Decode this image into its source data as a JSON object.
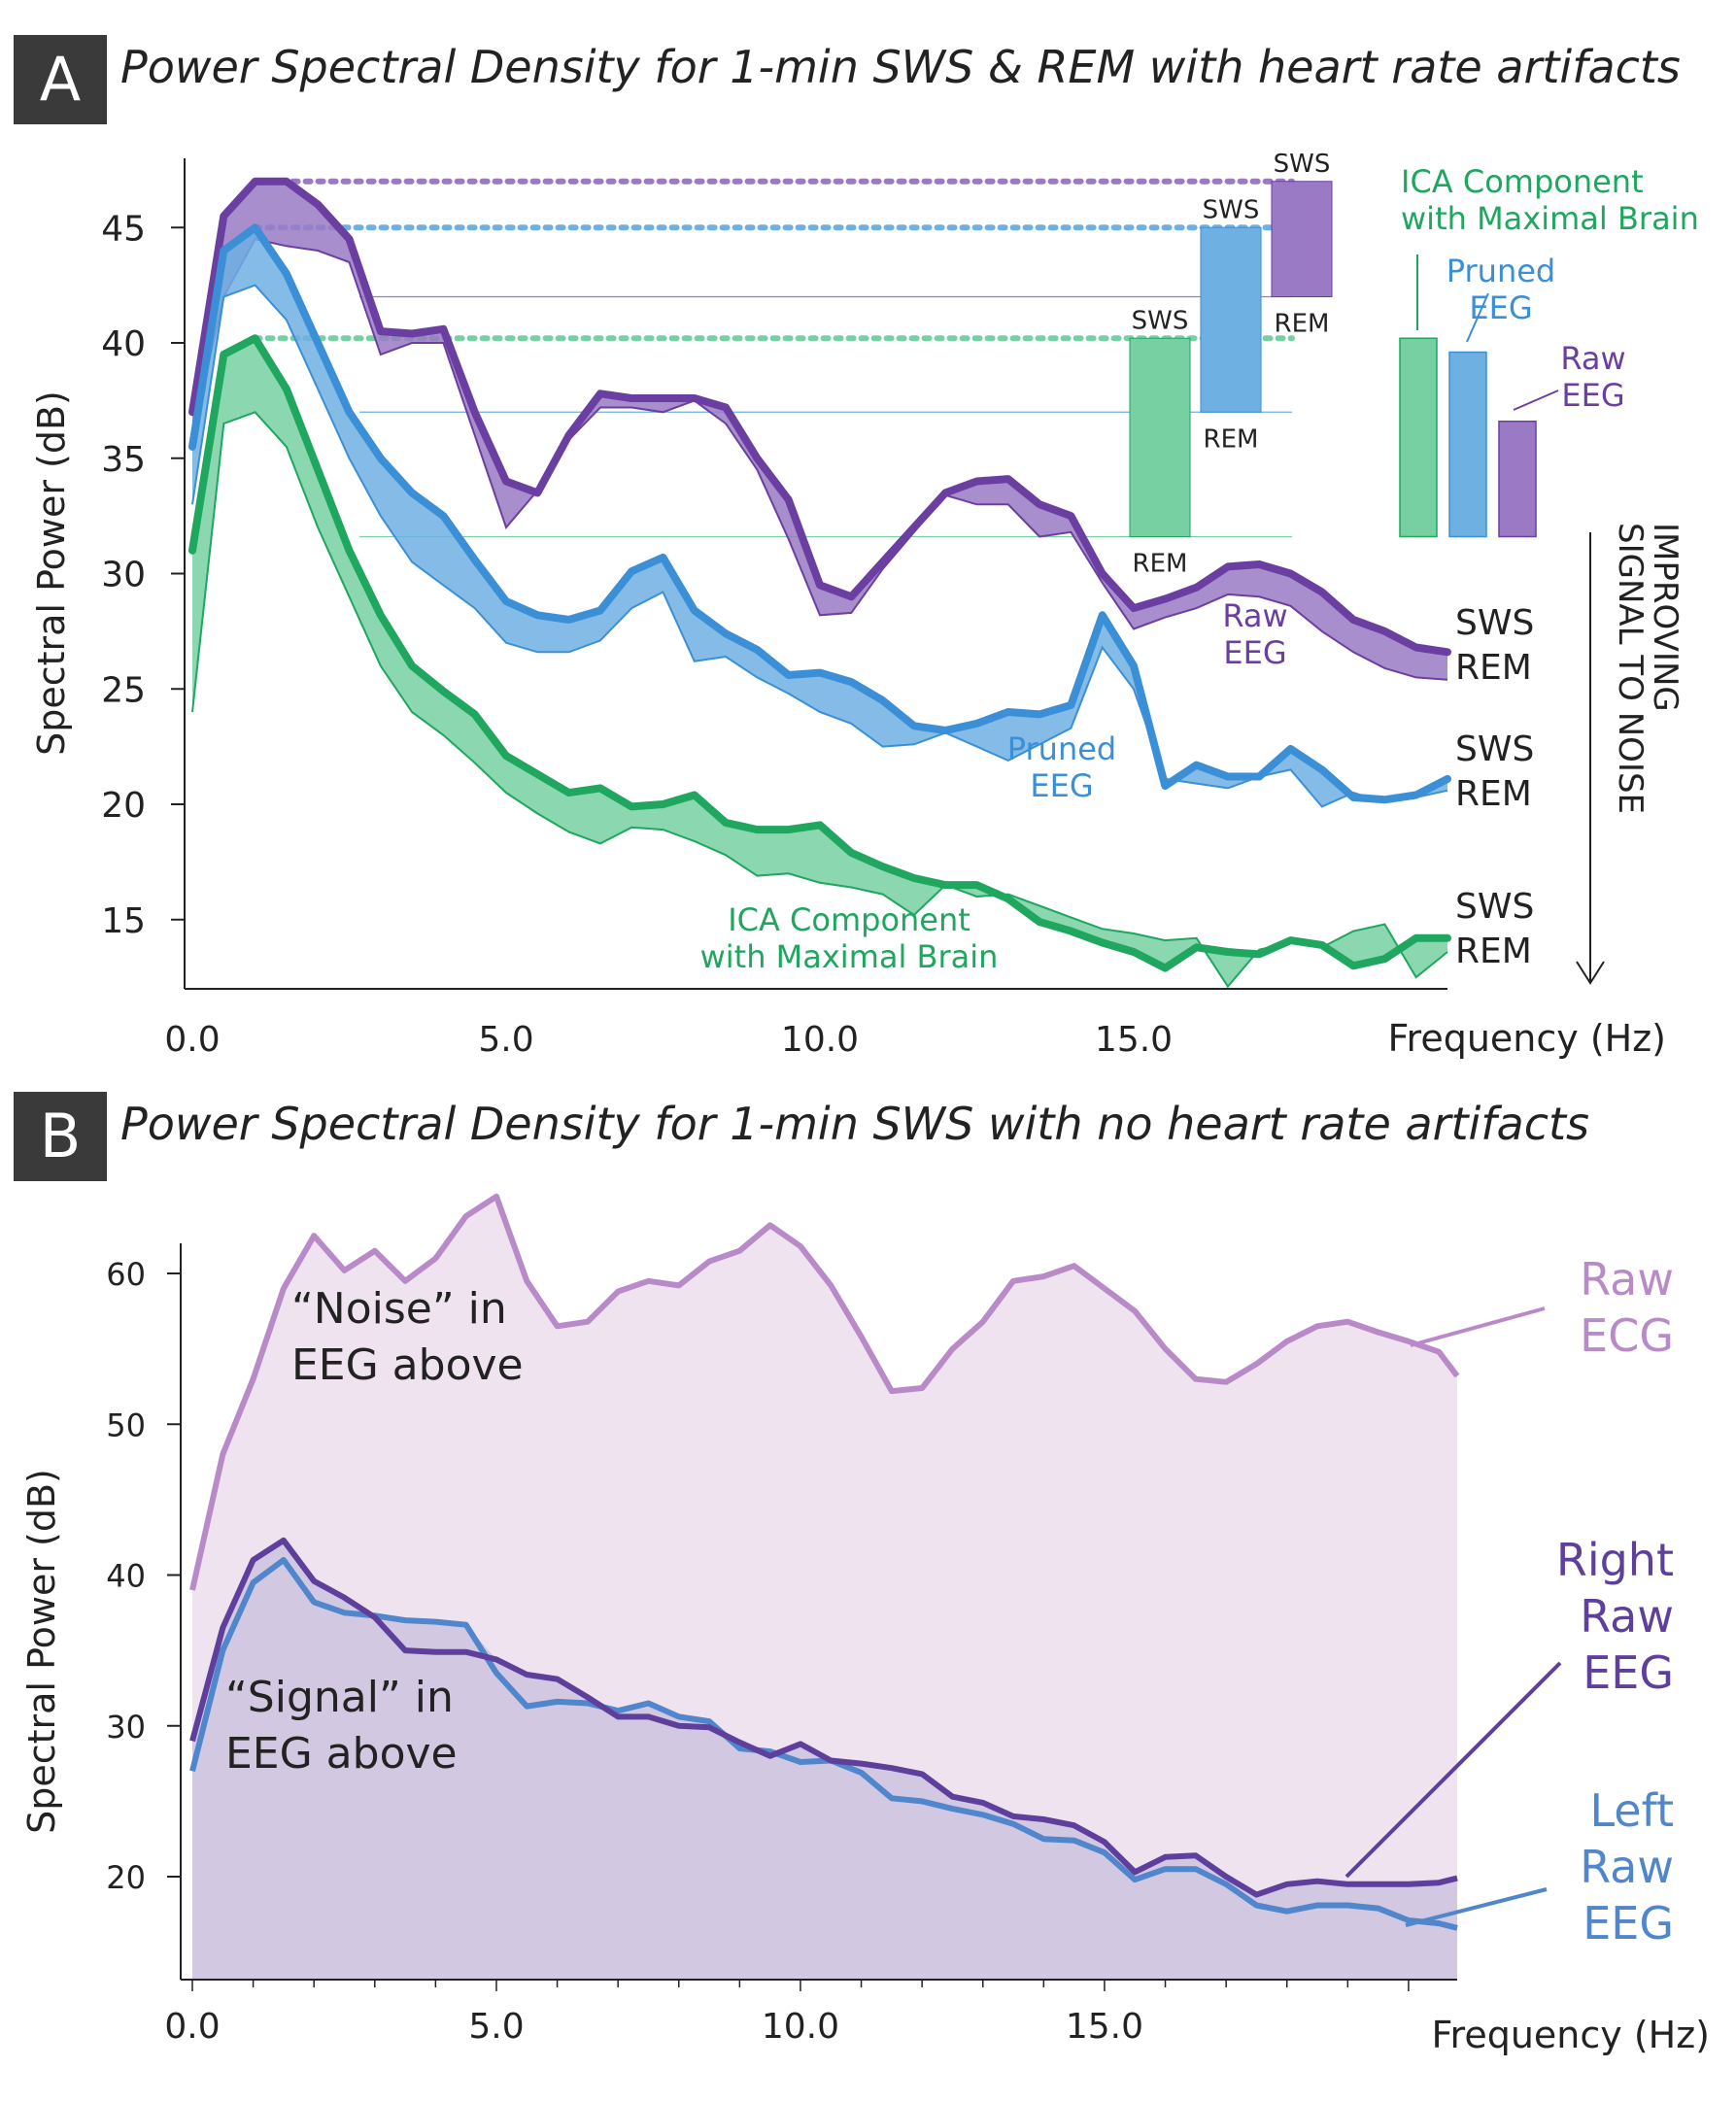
{
  "colors": {
    "purple": "#6a3fa1",
    "purple_fill": "#9a7ac4",
    "blue": "#3b8fd6",
    "blue_fill": "#6fb0e3",
    "green": "#1fa65f",
    "green_fill": "#76d0a2",
    "ecg": "#b98ac8",
    "ecg_fill": "#efe3f0",
    "right": "#5e3f9c",
    "left": "#4f86cc",
    "signal_fill": "#d3c8e2"
  },
  "panel_a": {
    "badge": "A",
    "title": "Power Spectral Density for 1-min SWS & REM with heart rate artifacts"
  },
  "panel_b": {
    "badge": "B",
    "title": "Power Spectral Density for 1-min SWS with no heart rate artifacts"
  },
  "chart_data": [
    {
      "type": "area",
      "title": "Power Spectral Density for 1-min SWS & REM with heart rate artifacts",
      "xlabel": "Frequency (Hz)",
      "ylabel": "Spectral Power (dB)",
      "xlim": [
        0,
        20
      ],
      "ylim": [
        12,
        48
      ],
      "xticks": [
        "0.0",
        "5.0",
        "10.0",
        "15.0"
      ],
      "yticks": [
        "15",
        "20",
        "25",
        "30",
        "35",
        "40",
        "45"
      ],
      "grid": false,
      "x": [
        0,
        0.5,
        1,
        1.5,
        2,
        2.5,
        3,
        3.5,
        4,
        4.5,
        5,
        5.5,
        6,
        6.5,
        7,
        7.5,
        8,
        8.5,
        9,
        9.5,
        10,
        10.5,
        11,
        11.5,
        12,
        12.5,
        13,
        13.5,
        14,
        14.5,
        15,
        15.5,
        16,
        16.5,
        17,
        17.5,
        18,
        18.5,
        19,
        19.5,
        20
      ],
      "series": [
        {
          "name": "Raw EEG",
          "state": "SWS",
          "color": "purple",
          "values": [
            37,
            45.5,
            47,
            47,
            46,
            44.5,
            40.5,
            40.4,
            40.6,
            37,
            34,
            33.5,
            36,
            37.8,
            37.6,
            37.6,
            37.6,
            37.2,
            35,
            33.2,
            29.5,
            29,
            30.5,
            32,
            33.5,
            34,
            34.1,
            33,
            32.5,
            30,
            28.5,
            28.9,
            29.4,
            30.3,
            30.4,
            30,
            29.2,
            28,
            27.5,
            26.8,
            26.6
          ]
        },
        {
          "name": "Raw EEG",
          "state": "REM",
          "color": "purple",
          "values": [
            36,
            42,
            44.5,
            44.2,
            44,
            43.5,
            39.5,
            40,
            40,
            36,
            32,
            33.6,
            35.8,
            37.2,
            37.2,
            37,
            37.5,
            36.5,
            34.5,
            31.5,
            28.2,
            28.3,
            30.2,
            31.8,
            33.4,
            33,
            33,
            31.6,
            31.8,
            29.6,
            27.6,
            28.1,
            28.5,
            29.1,
            29,
            28.6,
            27.5,
            26.6,
            25.9,
            25.5,
            25.4
          ]
        },
        {
          "name": "Pruned EEG",
          "state": "SWS",
          "color": "blue",
          "values": [
            35.5,
            44,
            45,
            43,
            40,
            37,
            35,
            33.5,
            32.5,
            30.6,
            28.8,
            28.2,
            28,
            28.4,
            30.1,
            30.7,
            28.4,
            27.4,
            26.7,
            25.6,
            25.7,
            25.3,
            24.5,
            23.4,
            23.2,
            23.5,
            24,
            23.9,
            24.3,
            28.2,
            26,
            20.8,
            21.7,
            21.2,
            21.2,
            22.4,
            21.5,
            20.3,
            20.2,
            20.4,
            21.1
          ]
        },
        {
          "name": "Pruned EEG",
          "state": "REM",
          "color": "blue",
          "values": [
            33,
            42,
            42.5,
            41,
            38,
            35,
            32.5,
            30.5,
            29.5,
            28.5,
            27,
            26.6,
            26.6,
            27.1,
            28.5,
            29.2,
            26.2,
            26.4,
            25.5,
            24.8,
            24,
            23.5,
            22.5,
            22.6,
            23.1,
            22.5,
            21.9,
            22.6,
            23.3,
            26.8,
            25,
            21.1,
            20.9,
            20.7,
            21.2,
            21.5,
            19.9,
            20.5,
            20.1,
            20.3,
            20.6
          ]
        },
        {
          "name": "ICA Component with Maximal Brain",
          "state": "SWS",
          "color": "green",
          "values": [
            31,
            39.5,
            40.2,
            38,
            34.5,
            31,
            28.2,
            26,
            24.9,
            23.9,
            22.1,
            21.3,
            20.5,
            20.7,
            19.9,
            20,
            20.4,
            19.2,
            18.9,
            18.9,
            19.1,
            17.9,
            17.3,
            16.8,
            16.5,
            16.5,
            15.9,
            14.9,
            14.5,
            14,
            13.6,
            12.9,
            13.8,
            13.6,
            13.5,
            14.1,
            13.9,
            13,
            13.3,
            14.2,
            14.2
          ]
        },
        {
          "name": "ICA Component with Maximal Brain",
          "state": "REM",
          "color": "green",
          "values": [
            24,
            36.5,
            37,
            35.5,
            32,
            29,
            26,
            24,
            23,
            21.8,
            20.5,
            19.6,
            18.8,
            18.3,
            19,
            18.9,
            18.4,
            17.8,
            16.9,
            17,
            16.6,
            16.4,
            16.1,
            15.2,
            16.5,
            16,
            16.1,
            15.6,
            15.1,
            14.6,
            14.4,
            14.1,
            14.2,
            12.1,
            13.7,
            14,
            13.8,
            14.5,
            14.8,
            12.5,
            13.6
          ]
        }
      ],
      "reference_levels": [
        {
          "color": "purple",
          "sws": 47,
          "rem": 42
        },
        {
          "color": "blue",
          "sws": 45,
          "rem": 37
        },
        {
          "color": "green",
          "sws": 40.2,
          "rem": 31.6
        }
      ],
      "annotations": {
        "sws": "SWS",
        "rem": "REM",
        "raw_eeg": "Raw EEG",
        "pruned_eeg": "Pruned EEG",
        "ica": "ICA Component with Maximal Brain",
        "arrow_label": "IMPROVING SIGNAL TO NOISE"
      }
    },
    {
      "type": "area",
      "title": "Power Spectral Density for 1-min SWS with no heart rate artifacts",
      "xlabel": "Frequency (Hz)",
      "ylabel": "Spectral Power (dB)",
      "xlim": [
        0,
        20.8
      ],
      "ylim": [
        15,
        62
      ],
      "xticks": [
        "0.0",
        "5.0",
        "10.0",
        "15.0"
      ],
      "yticks": [
        "20",
        "30",
        "40",
        "50",
        "60"
      ],
      "grid": false,
      "x": [
        0,
        0.5,
        1,
        1.5,
        2,
        2.5,
        3,
        3.5,
        4,
        4.5,
        5,
        5.5,
        6,
        6.5,
        7,
        7.5,
        8,
        8.5,
        9,
        9.5,
        10,
        10.5,
        11,
        11.5,
        12,
        12.5,
        13,
        13.5,
        14,
        14.5,
        15,
        15.5,
        16,
        16.5,
        17,
        17.5,
        18,
        18.5,
        19,
        19.5,
        20,
        20.5,
        20.8
      ],
      "series": [
        {
          "name": "Raw ECG",
          "color": "ecg",
          "values": [
            39,
            48,
            53,
            59,
            62.5,
            60.2,
            61.5,
            59.5,
            61,
            63.8,
            65.1,
            59.5,
            56.5,
            56.8,
            58.8,
            59.5,
            59.2,
            60.8,
            61.5,
            63.2,
            61.8,
            59.2,
            55.8,
            52.2,
            52.4,
            55,
            56.8,
            59.5,
            59.8,
            60.5,
            59,
            57.5,
            55,
            53,
            52.8,
            54,
            55.5,
            56.5,
            56.8,
            56.1,
            55.5,
            54.8,
            53.2
          ]
        },
        {
          "name": "Right Raw EEG",
          "color": "right",
          "values": [
            29,
            36.5,
            41,
            42.3,
            39.6,
            38.5,
            37.2,
            35,
            34.9,
            34.9,
            34.4,
            33.4,
            33.1,
            31.9,
            30.6,
            30.6,
            30,
            29.9,
            28.9,
            28,
            28.8,
            27.7,
            27.5,
            27.2,
            26.8,
            25.3,
            24.9,
            24,
            23.8,
            23.4,
            22.3,
            20.3,
            21.3,
            21.4,
            20,
            18.8,
            19.5,
            19.7,
            19.5,
            19.5,
            19.5,
            19.6,
            19.9
          ]
        },
        {
          "name": "Left Raw EEG",
          "color": "left",
          "values": [
            27,
            35,
            39.5,
            41,
            38.2,
            37.5,
            37.3,
            37,
            36.9,
            36.7,
            33.5,
            31.3,
            31.6,
            31.5,
            31,
            31.5,
            30.6,
            30.3,
            28.5,
            28.3,
            27.6,
            27.7,
            26.9,
            25.2,
            25,
            24.5,
            24.1,
            23.5,
            22.5,
            22.4,
            21.6,
            19.8,
            20.5,
            20.5,
            19.5,
            18.1,
            17.7,
            18.1,
            18.1,
            17.9,
            17.1,
            16.9,
            16.6
          ]
        }
      ],
      "annotations": {
        "noise": [
          "“Noise” in",
          "EEG above"
        ],
        "signal": [
          "“Signal” in",
          "EEG above"
        ],
        "raw_ecg": [
          "Raw",
          "ECG"
        ],
        "right_raw_eeg": [
          "Right",
          "Raw",
          "EEG"
        ],
        "left_raw_eeg": [
          "Left",
          "Raw",
          "EEG"
        ]
      }
    }
  ],
  "legend_a": {
    "title_lines": [
      "ICA Component",
      "with Maximal Brain"
    ],
    "pruned_lines": [
      "Pruned",
      "EEG"
    ],
    "raw_lines": [
      "Raw",
      "EEG"
    ],
    "bars": [
      {
        "color": "green",
        "value": 40.2
      },
      {
        "color": "blue",
        "value": 39.6
      },
      {
        "color": "purple",
        "value": 36.6
      }
    ],
    "bar_base": 31.6
  }
}
